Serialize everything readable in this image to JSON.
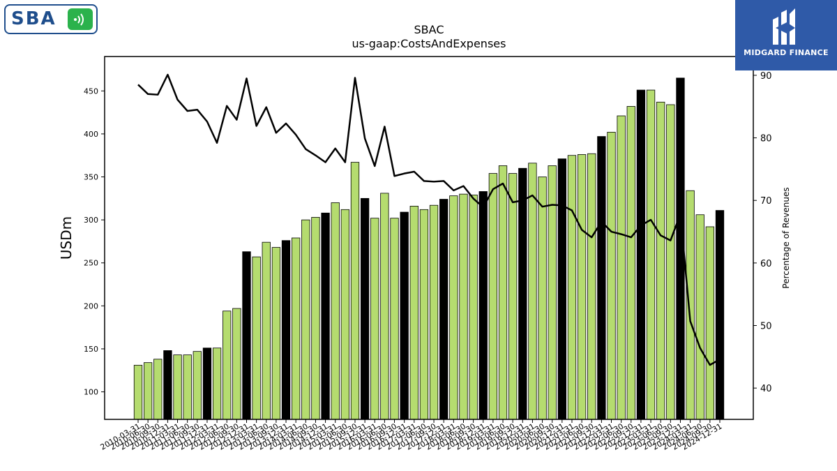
{
  "brand": {
    "company_logo_text": "SBA",
    "publisher_name": "MIDGARD FINANCE"
  },
  "colors": {
    "bar_green": "#b5dc6f",
    "bar_black": "#000000",
    "line": "#000000",
    "publisher_blue": "#2f5aa8",
    "logo_blue": "#1f4e8c",
    "logo_green": "#2bb24c"
  },
  "chart_data": {
    "type": "bar",
    "title": "SBAC",
    "subtitle": "us-gaap:CostsAndExpenses",
    "ylabel": "USDm",
    "y2label": "Percentage of Revenues",
    "ylim": [
      68,
      490
    ],
    "y2lim": [
      35,
      93
    ],
    "yticks": [
      100,
      150,
      200,
      250,
      300,
      350,
      400,
      450
    ],
    "y2ticks": [
      40,
      50,
      60,
      70,
      80,
      90
    ],
    "categories": [
      "2010-03-31",
      "2010-06-30",
      "2010-09-30",
      "2010-12-31",
      "2011-03-31",
      "2011-06-30",
      "2011-09-30",
      "2011-12-31",
      "2012-03-31",
      "2012-06-30",
      "2012-09-30",
      "2012-12-31",
      "2013-03-31",
      "2013-06-30",
      "2013-09-30",
      "2013-12-31",
      "2014-03-31",
      "2014-06-30",
      "2014-09-30",
      "2014-12-31",
      "2015-03-31",
      "2015-06-30",
      "2015-09-30",
      "2015-12-31",
      "2016-03-31",
      "2016-06-30",
      "2016-09-30",
      "2016-12-31",
      "2017-03-31",
      "2017-06-30",
      "2017-09-30",
      "2017-12-31",
      "2018-03-31",
      "2018-06-30",
      "2018-09-30",
      "2018-12-31",
      "2019-03-31",
      "2019-06-30",
      "2019-09-30",
      "2019-12-31",
      "2020-03-31",
      "2020-06-30",
      "2020-09-30",
      "2020-12-31",
      "2021-03-31",
      "2021-06-30",
      "2021-09-30",
      "2021-12-31",
      "2022-03-31",
      "2022-06-30",
      "2022-09-30",
      "2022-12-31",
      "2023-03-31",
      "2023-06-30",
      "2023-09-30",
      "2023-12-31",
      "2024-03-31",
      "2024-06-30",
      "2024-09-30",
      "2024-12-31"
    ],
    "tick_labels_shown": [
      "2010-03-31",
      "2010-06-30",
      "2010-09-30",
      "2010-12-31",
      "2011-03-31",
      "2011-06-30",
      "2011-09-30",
      "2011-12-31",
      "2012-03-31",
      "2012-06-30",
      "2012-09-30",
      "2012-12-31",
      "2013-03-31",
      "2013-06-30",
      "2013-09-30",
      "2013-12-31",
      "2014-03-31",
      "2014-06-30",
      "2014-09-30",
      "2014-12-31",
      "2015-03-31",
      "2015-06-30",
      "2015-09-30",
      "2015-12-31",
      "2016-03-31",
      "2016-06-30",
      "2016-09-30",
      "2016-12-31",
      "2017-03-31",
      "2017-06-30",
      "2017-09-30",
      "2017-12-31",
      "2018-03-31",
      "2018-06-30",
      "2018-09-30",
      "2018-12-31",
      "2019-03-31",
      "2019-06-30",
      "2019-09-30",
      "2019-12-31",
      "2020-03-31",
      "2020-06-30",
      "2020-09-30",
      "2020-12-31",
      "2021-03-31",
      "2021-06-30",
      "2021-09-30",
      "2021-12-31",
      "2022-03-31",
      "2022-06-30",
      "2022-09-30",
      "2022-12-31",
      "2023-03-31",
      "2023-06-30",
      "2023-09-30",
      "2023-12-31",
      "2024-03-31",
      "2024-06-30",
      "2024-09-30",
      "2024-12-31"
    ],
    "values": [
      131,
      134,
      138,
      148,
      143,
      143,
      147,
      151,
      151,
      194,
      197,
      263,
      257,
      274,
      268,
      276,
      279,
      300,
      303,
      308,
      320,
      312,
      367,
      325,
      302,
      331,
      302,
      309,
      316,
      312,
      317,
      324,
      328,
      330,
      329,
      333,
      354,
      363,
      354,
      360,
      366,
      350,
      363,
      371,
      375,
      376,
      377,
      397,
      402,
      421,
      432,
      451,
      451,
      437,
      434,
      465,
      334,
      306,
      292,
      311
    ],
    "annual_flags": [
      0,
      0,
      0,
      1,
      0,
      0,
      0,
      1,
      0,
      0,
      0,
      1,
      0,
      0,
      0,
      1,
      0,
      0,
      0,
      1,
      0,
      0,
      0,
      1,
      0,
      0,
      0,
      1,
      0,
      0,
      0,
      1,
      0,
      0,
      0,
      1,
      0,
      0,
      0,
      1,
      0,
      0,
      0,
      1,
      0,
      0,
      0,
      1,
      0,
      0,
      0,
      1,
      0,
      0,
      0,
      1,
      0,
      0,
      0,
      1
    ],
    "pct_of_revenues": [
      88.5,
      87.0,
      86.9,
      90.1,
      86.1,
      84.3,
      84.5,
      82.6,
      79.2,
      85.1,
      82.9,
      89.5,
      81.9,
      84.9,
      80.8,
      82.3,
      80.5,
      78.2,
      77.2,
      76.1,
      78.3,
      76.1,
      89.6,
      79.9,
      75.5,
      81.8,
      73.9,
      74.3,
      74.6,
      73.1,
      73.0,
      73.1,
      71.6,
      72.3,
      70.3,
      68.9,
      71.8,
      72.7,
      69.7,
      70.0,
      70.8,
      69.0,
      69.3,
      69.2,
      68.4,
      65.3,
      64.1,
      66.6,
      65.0,
      64.6,
      64.1,
      66.0,
      66.9,
      64.4,
      63.6,
      67.8,
      50.7,
      46.4,
      43.7,
      44.6
    ]
  }
}
